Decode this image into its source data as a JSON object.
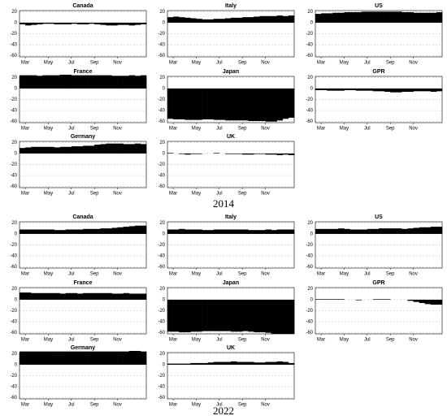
{
  "captions": [
    "2014",
    "2022"
  ],
  "chart_data": [
    {
      "type": "bar",
      "title": "Canada",
      "color": "#000000",
      "grid": true,
      "ylim": [
        -62,
        22
      ],
      "yticks": [
        20,
        0,
        -20,
        -40,
        -60
      ],
      "categories": [
        null,
        "Mar",
        null,
        null,
        null,
        "May",
        null,
        null,
        null,
        "Jul",
        null,
        null,
        null,
        "Sep",
        null,
        null,
        null,
        "Nov",
        null,
        null,
        null,
        null
      ],
      "values": [
        -3,
        -5,
        -4,
        -3,
        -2,
        -2,
        -3,
        -3,
        -3,
        -2,
        -3,
        -3,
        -2,
        -3,
        -4,
        -5,
        -5,
        -4,
        -4,
        -5,
        -4,
        -3
      ]
    },
    {
      "type": "bar",
      "title": "Italy",
      "color": "#000000",
      "grid": true,
      "ylim": [
        -62,
        22
      ],
      "yticks": [
        20,
        0,
        -20,
        -40,
        -60
      ],
      "categories": [
        null,
        "Mar",
        null,
        null,
        null,
        "May",
        null,
        null,
        null,
        "Jul",
        null,
        null,
        null,
        "Sep",
        null,
        null,
        null,
        "Nov",
        null,
        null,
        null,
        null
      ],
      "values": [
        10,
        11,
        10,
        9,
        8,
        7,
        6,
        6,
        7,
        7,
        8,
        9,
        9,
        10,
        10,
        11,
        12,
        12,
        12,
        13,
        12,
        13
      ]
    },
    {
      "type": "bar",
      "title": "US",
      "color": "#000000",
      "grid": true,
      "ylim": [
        -62,
        22
      ],
      "yticks": [
        20,
        0,
        -20,
        -40,
        -60
      ],
      "categories": [
        null,
        "Mar",
        null,
        null,
        null,
        "May",
        null,
        null,
        null,
        "Jul",
        null,
        null,
        null,
        "Sep",
        null,
        null,
        null,
        "Nov",
        null,
        null,
        null,
        null
      ],
      "values": [
        16,
        17,
        17,
        18,
        18,
        19,
        19,
        19,
        20,
        20,
        20,
        20,
        20,
        20,
        20,
        19,
        19,
        18,
        18,
        18,
        18,
        19
      ]
    },
    {
      "type": "bar",
      "title": "France",
      "color": "#000000",
      "grid": true,
      "ylim": [
        -62,
        22
      ],
      "yticks": [
        20,
        0,
        -20,
        -40,
        -60
      ],
      "categories": [
        null,
        "Mar",
        null,
        null,
        null,
        "May",
        null,
        null,
        null,
        "Jul",
        null,
        null,
        null,
        "Sep",
        null,
        null,
        null,
        "Nov",
        null,
        null,
        null,
        null
      ],
      "values": [
        24,
        24,
        24,
        23,
        24,
        24,
        24,
        25,
        25,
        24,
        24,
        24,
        24,
        24,
        24,
        24,
        23,
        23,
        23,
        24,
        23,
        24
      ]
    },
    {
      "type": "bar",
      "title": "Japan",
      "color": "#000000",
      "grid": true,
      "ylim": [
        -62,
        22
      ],
      "yticks": [
        20,
        0,
        -20,
        -40,
        -60
      ],
      "categories": [
        null,
        "Mar",
        null,
        null,
        null,
        "May",
        null,
        null,
        null,
        "Jul",
        null,
        null,
        null,
        "Sep",
        null,
        null,
        null,
        "Nov",
        null,
        null,
        null,
        null
      ],
      "values": [
        -55,
        -56,
        -56,
        -57,
        -57,
        -57,
        -56,
        -56,
        -57,
        -57,
        -58,
        -58,
        -58,
        -58,
        -59,
        -59,
        -59,
        -60,
        -60,
        -58,
        -55,
        -53
      ]
    },
    {
      "type": "bar",
      "title": "GPR",
      "color": "#000000",
      "grid": true,
      "ylim": [
        -62,
        22
      ],
      "yticks": [
        20,
        0,
        -20,
        -40,
        -60
      ],
      "categories": [
        null,
        "Mar",
        null,
        null,
        null,
        "May",
        null,
        null,
        null,
        "Jul",
        null,
        null,
        null,
        "Sep",
        null,
        null,
        null,
        "Nov",
        null,
        null,
        null,
        null
      ],
      "values": [
        -3,
        -3,
        -4,
        -4,
        -4,
        -3,
        -3,
        -4,
        -4,
        -4,
        -5,
        -5,
        -6,
        -7,
        -7,
        -6,
        -6,
        -5,
        -5,
        -5,
        -6,
        -5
      ]
    },
    {
      "type": "bar",
      "title": "Germany",
      "color": "#000000",
      "grid": true,
      "ylim": [
        -62,
        22
      ],
      "yticks": [
        20,
        0,
        -20,
        -40,
        -60
      ],
      "categories": [
        null,
        "Mar",
        null,
        null,
        null,
        "May",
        null,
        null,
        null,
        "Jul",
        null,
        null,
        null,
        "Sep",
        null,
        null,
        null,
        "Nov",
        null,
        null,
        null,
        null
      ],
      "values": [
        10,
        11,
        12,
        12,
        12,
        12,
        11,
        12,
        12,
        13,
        13,
        14,
        14,
        16,
        17,
        18,
        18,
        18,
        17,
        17,
        18,
        17
      ]
    },
    {
      "type": "bar",
      "title": "UK",
      "color": "#000000",
      "grid": true,
      "ylim": [
        -62,
        22
      ],
      "yticks": [
        20,
        0,
        -20,
        -40,
        -60
      ],
      "categories": [
        null,
        "Mar",
        null,
        null,
        null,
        "May",
        null,
        null,
        null,
        "Jul",
        null,
        null,
        null,
        "Sep",
        null,
        null,
        null,
        "Nov",
        null,
        null,
        null,
        null
      ],
      "values": [
        1,
        0,
        -1,
        -2,
        -1,
        -1,
        0,
        0,
        1,
        0,
        -1,
        -1,
        -1,
        -2,
        -2,
        -1,
        -1,
        -2,
        -2,
        -3,
        -2,
        -3
      ]
    },
    {
      "type": "bar",
      "title": "Canada",
      "color": "#000000",
      "grid": true,
      "ylim": [
        -62,
        22
      ],
      "yticks": [
        20,
        0,
        -20,
        -40,
        -60
      ],
      "categories": [
        null,
        "Mar",
        null,
        null,
        null,
        "May",
        null,
        null,
        null,
        "Jul",
        null,
        null,
        null,
        "Sep",
        null,
        null,
        null,
        "Nov",
        null,
        null,
        null,
        null
      ],
      "values": [
        8,
        8,
        8,
        8,
        8,
        8,
        7,
        7,
        8,
        8,
        8,
        9,
        9,
        9,
        10,
        10,
        11,
        12,
        13,
        14,
        15,
        15
      ]
    },
    {
      "type": "bar",
      "title": "Italy",
      "color": "#000000",
      "grid": true,
      "ylim": [
        -62,
        22
      ],
      "yticks": [
        20,
        0,
        -20,
        -40,
        -60
      ],
      "categories": [
        null,
        "Mar",
        null,
        null,
        null,
        "May",
        null,
        null,
        null,
        "Jul",
        null,
        null,
        null,
        "Sep",
        null,
        null,
        null,
        "Nov",
        null,
        null,
        null,
        null
      ],
      "values": [
        8,
        8,
        9,
        8,
        8,
        8,
        7,
        7,
        8,
        8,
        8,
        8,
        8,
        8,
        7,
        7,
        7,
        8,
        7,
        8,
        8,
        8
      ]
    },
    {
      "type": "bar",
      "title": "US",
      "color": "#000000",
      "grid": true,
      "ylim": [
        -62,
        22
      ],
      "yticks": [
        20,
        0,
        -20,
        -40,
        -60
      ],
      "categories": [
        null,
        "Mar",
        null,
        null,
        null,
        "May",
        null,
        null,
        null,
        "Jul",
        null,
        null,
        null,
        "Sep",
        null,
        null,
        null,
        "Nov",
        null,
        null,
        null,
        null
      ],
      "values": [
        9,
        9,
        9,
        9,
        10,
        9,
        8,
        8,
        8,
        9,
        9,
        10,
        10,
        10,
        10,
        9,
        10,
        11,
        12,
        12,
        13,
        13
      ]
    },
    {
      "type": "bar",
      "title": "France",
      "color": "#000000",
      "grid": true,
      "ylim": [
        -62,
        22
      ],
      "yticks": [
        20,
        0,
        -20,
        -40,
        -60
      ],
      "categories": [
        null,
        "Mar",
        null,
        null,
        null,
        "May",
        null,
        null,
        null,
        "Jul",
        null,
        null,
        null,
        "Sep",
        null,
        null,
        null,
        "Nov",
        null,
        null,
        null,
        null
      ],
      "values": [
        13,
        13,
        12,
        12,
        12,
        12,
        12,
        11,
        12,
        12,
        11,
        12,
        12,
        12,
        12,
        12,
        11,
        11,
        12,
        11,
        11,
        11
      ]
    },
    {
      "type": "bar",
      "title": "Japan",
      "color": "#000000",
      "grid": true,
      "ylim": [
        -62,
        22
      ],
      "yticks": [
        20,
        0,
        -20,
        -40,
        -60
      ],
      "categories": [
        null,
        "Mar",
        null,
        null,
        null,
        "May",
        null,
        null,
        null,
        "Jul",
        null,
        null,
        null,
        "Sep",
        null,
        null,
        null,
        "Nov",
        null,
        null,
        null,
        null
      ],
      "values": [
        -58,
        -58,
        -59,
        -59,
        -58,
        -58,
        -57,
        -57,
        -57,
        -57,
        -57,
        -58,
        -58,
        -57,
        -58,
        -59,
        -59,
        -60,
        -62,
        -62,
        -62,
        -62
      ]
    },
    {
      "type": "bar",
      "title": "GPR",
      "color": "#000000",
      "grid": true,
      "ylim": [
        -62,
        22
      ],
      "yticks": [
        20,
        0,
        -20,
        -40,
        -60
      ],
      "categories": [
        null,
        "Mar",
        null,
        null,
        null,
        "May",
        null,
        null,
        null,
        "Jul",
        null,
        null,
        null,
        "Sep",
        null,
        null,
        null,
        "Nov",
        null,
        null,
        null,
        null
      ],
      "values": [
        1,
        1,
        1,
        1,
        1,
        0,
        0,
        -1,
        0,
        0,
        1,
        1,
        1,
        0,
        0,
        0,
        -2,
        -4,
        -6,
        -8,
        -9,
        -9
      ]
    },
    {
      "type": "bar",
      "title": "Germany",
      "color": "#000000",
      "grid": true,
      "ylim": [
        -62,
        22
      ],
      "yticks": [
        20,
        0,
        -20,
        -40,
        -60
      ],
      "categories": [
        null,
        "Mar",
        null,
        null,
        null,
        "May",
        null,
        null,
        null,
        "Jul",
        null,
        null,
        null,
        "Sep",
        null,
        null,
        null,
        "Nov",
        null,
        null,
        null,
        null
      ],
      "values": [
        24,
        24,
        24,
        24,
        24,
        24,
        24,
        24,
        24,
        24,
        24,
        24,
        24,
        24,
        24,
        24,
        24,
        24,
        24,
        25,
        25,
        24
      ]
    },
    {
      "type": "bar",
      "title": "UK",
      "color": "#000000",
      "grid": true,
      "ylim": [
        -62,
        22
      ],
      "yticks": [
        20,
        0,
        -20,
        -40,
        -60
      ],
      "categories": [
        null,
        "Mar",
        null,
        null,
        null,
        "May",
        null,
        null,
        null,
        "Jul",
        null,
        null,
        null,
        "Sep",
        null,
        null,
        null,
        "Nov",
        null,
        null,
        null,
        null
      ],
      "values": [
        2,
        2,
        2,
        2,
        3,
        3,
        3,
        4,
        5,
        5,
        5,
        6,
        5,
        5,
        5,
        4,
        4,
        5,
        5,
        6,
        5,
        3
      ]
    }
  ]
}
